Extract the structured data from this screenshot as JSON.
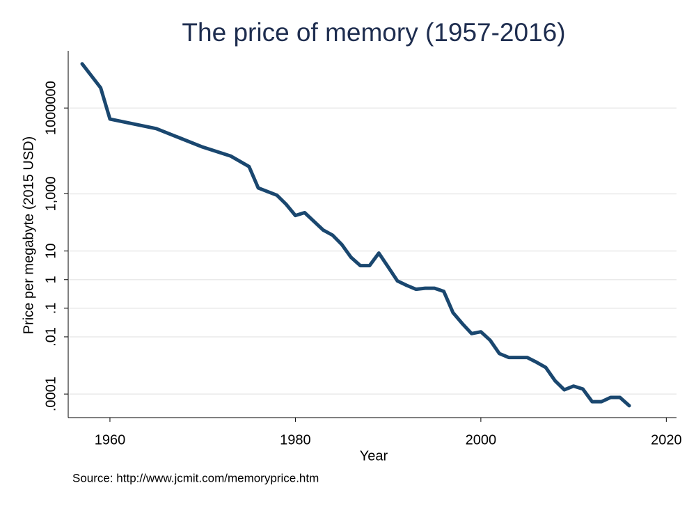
{
  "chart_data": {
    "type": "line",
    "title": "The price of memory (1957-2016)",
    "x_label": "Year",
    "y_label": "Price per megabyte (2015 USD)",
    "note": "Source: http://www.jcmit.com/memoryprice.htm",
    "x": [
      1957,
      1959,
      1960,
      1965,
      1970,
      1973,
      1975,
      1976,
      1978,
      1979,
      1980,
      1981,
      1983,
      1984,
      1985,
      1986,
      1987,
      1988,
      1989,
      1990,
      1991,
      1992,
      1993,
      1994,
      1995,
      1996,
      1997,
      1998,
      1999,
      2000,
      2001,
      2002,
      2003,
      2004,
      2005,
      2006,
      2007,
      2008,
      2009,
      2010,
      2011,
      2012,
      2013,
      2014,
      2015,
      2016
    ],
    "values": [
      35000000,
      5100000,
      410000,
      190000,
      43000,
      21000,
      9000,
      1600,
      900,
      430,
      175,
      220,
      54,
      36,
      17,
      6,
      3.1,
      3.1,
      8.5,
      2.8,
      0.9,
      0.63,
      0.46,
      0.5,
      0.5,
      0.39,
      0.07,
      0.029,
      0.013,
      0.015,
      0.0076,
      0.0026,
      0.0019,
      0.0019,
      0.0019,
      0.0013,
      0.00085,
      0.00029,
      0.00014,
      0.00019,
      0.00015,
      5.4e-05,
      5.4e-05,
      7.6e-05,
      7.6e-05,
      3.9e-05
    ],
    "color": "#1a476f",
    "xlim": [
      1955.5,
      2021.1
    ],
    "xticks": [
      1960,
      1980,
      2000,
      2020
    ],
    "ylim": [
      1.5e-05,
      100000000
    ],
    "yticks": [
      {
        "value": 0.0001,
        "label": ".0001"
      },
      {
        "value": 0.01,
        "label": ".01"
      },
      {
        "value": 0.1,
        "label": ".1"
      },
      1,
      10,
      {
        "value": 1000,
        "label": "1,000"
      },
      1000000
    ],
    "ylog": true,
    "grid": true
  }
}
